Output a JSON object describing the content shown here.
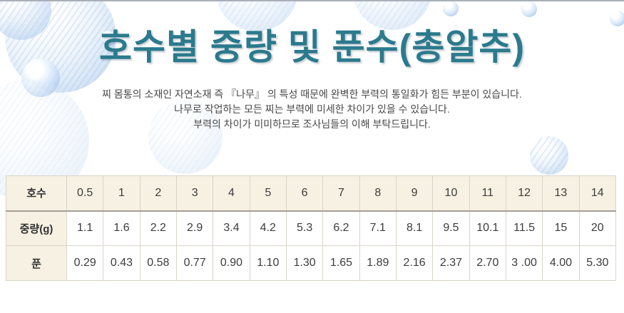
{
  "header": {
    "title": "호수별 중량 및 푼수(총알추)"
  },
  "intro": {
    "line1": "찌 몸통의 소재인 자연소재 즉 『나무』 의 특성 때문에 완벽한 부력의 통일화가 힘든 부분이 있습니다.",
    "line2": "나무로 작업하는 모든 찌는 부력에 미세한 차이가 있을 수 있습니다.",
    "line3": "부력의 차이가 미미하므로 조사님들의 이해 부탁드립니다."
  },
  "table": {
    "rows": [
      {
        "label": "호수",
        "values": [
          "0.5",
          "1",
          "2",
          "3",
          "4",
          "5",
          "6",
          "7",
          "8",
          "9",
          "10",
          "11",
          "12",
          "13",
          "14"
        ]
      },
      {
        "label": "중량(g)",
        "values": [
          "1.1",
          "1.6",
          "2.2",
          "2.9",
          "3.4",
          "4.2",
          "5.3",
          "6.2",
          "7.1",
          "8.1",
          "9.5",
          "10.1",
          "11.5",
          "15",
          "20"
        ]
      },
      {
        "label": "푼",
        "values": [
          "0.29",
          "0.43",
          "0.58",
          "0.77",
          "0.90",
          "1.10",
          "1.30",
          "1.65",
          "1.89",
          "2.16",
          "2.37",
          "2.70",
          "3 .00",
          "4.00",
          "5.30"
        ]
      }
    ]
  },
  "colors": {
    "title_teal": "#2b7a8d",
    "header_cell_bg": "#f6f1e2",
    "table_border": "#d9d5c9",
    "header_underline": "#a39f95",
    "body_text": "#484848",
    "bubble_blue": "#8eb2de"
  }
}
